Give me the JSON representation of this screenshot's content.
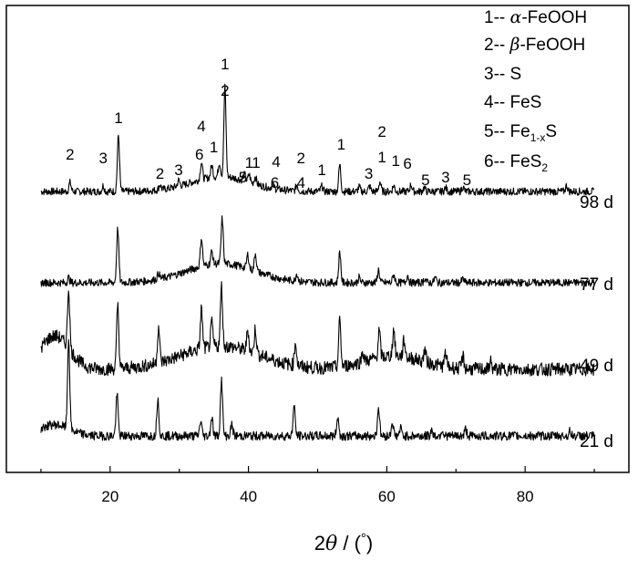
{
  "chart_data": {
    "type": "line",
    "xlabel_parts": [
      "2",
      "θ",
      " / (",
      "°",
      ")"
    ],
    "xlim": [
      5,
      95
    ],
    "x_ticks": [
      20,
      40,
      60,
      80
    ],
    "y_ticks_shown": false,
    "legend_position": "top-right",
    "legend": [
      {
        "num": "1--",
        "symbol": "α",
        "name": "-FeOOH"
      },
      {
        "num": "2--",
        "symbol": "β",
        "name": "-FeOOH"
      },
      {
        "num": "3--",
        "name": "S"
      },
      {
        "num": "4--",
        "name": "FeS"
      },
      {
        "num": "5--",
        "name": "Fe",
        "sub": "1-x",
        "tail": "S"
      },
      {
        "num": "6--",
        "name": "FeS",
        "sub": "2"
      }
    ],
    "series": [
      {
        "name": "98 d",
        "baseline": 0,
        "noise": 0.5,
        "range": [
          10,
          90
        ],
        "peaks": [
          [
            14.2,
            1.2
          ],
          [
            19.0,
            0.8
          ],
          [
            21.2,
            7.5
          ],
          [
            27.2,
            0.7
          ],
          [
            29.9,
            0.8
          ],
          [
            33.2,
            2.3
          ],
          [
            34.7,
            1.6
          ],
          [
            35.8,
            1.9
          ],
          [
            36.6,
            12.0
          ],
          [
            39.4,
            0.8
          ],
          [
            40.1,
            1.0
          ],
          [
            41.0,
            1.0
          ],
          [
            43.5,
            0.6
          ],
          [
            47.0,
            0.8
          ],
          [
            50.6,
            0.7
          ],
          [
            53.2,
            3.6
          ],
          [
            56.0,
            0.6
          ],
          [
            57.5,
            0.7
          ],
          [
            59.0,
            1.3
          ],
          [
            61.0,
            0.8
          ],
          [
            63.5,
            0.9
          ],
          [
            65.4,
            0.5
          ],
          [
            68.5,
            0.5
          ],
          [
            71.0,
            0.6
          ],
          [
            86.0,
            0.8
          ]
        ],
        "hump": [
          [
            36,
            2.0,
            6
          ]
        ]
      },
      {
        "name": "77 d",
        "baseline": 0,
        "noise": 0.6,
        "range": [
          10,
          90
        ],
        "peaks": [
          [
            14.0,
            0.8
          ],
          [
            21.1,
            8.5
          ],
          [
            27.0,
            0.9
          ],
          [
            33.2,
            4.5
          ],
          [
            34.7,
            2.0
          ],
          [
            36.2,
            7.0
          ],
          [
            39.9,
            2.2
          ],
          [
            41.0,
            2.8
          ],
          [
            47.0,
            1.2
          ],
          [
            53.2,
            4.8
          ],
          [
            56.0,
            0.8
          ],
          [
            58.8,
            2.0
          ],
          [
            61.0,
            1.3
          ],
          [
            63.0,
            1.2
          ],
          [
            65.5,
            0.7
          ],
          [
            67.0,
            0.8
          ],
          [
            71.0,
            0.6
          ]
        ],
        "hump": [
          [
            36,
            3.0,
            7
          ]
        ]
      },
      {
        "name": "49 d",
        "baseline": 0,
        "noise": 1.0,
        "range": [
          10,
          90
        ],
        "peaks": [
          [
            14.0,
            9.0
          ],
          [
            21.1,
            9.5
          ],
          [
            27.0,
            5.5
          ],
          [
            33.2,
            6.0
          ],
          [
            34.7,
            3.5
          ],
          [
            36.1,
            9.0
          ],
          [
            39.9,
            3.2
          ],
          [
            41.0,
            3.8
          ],
          [
            46.8,
            3.5
          ],
          [
            53.2,
            7.0
          ],
          [
            56.5,
            1.5
          ],
          [
            58.9,
            4.0
          ],
          [
            61.0,
            4.0
          ],
          [
            62.5,
            2.5
          ],
          [
            65.5,
            1.8
          ],
          [
            68.5,
            2.0
          ],
          [
            71.0,
            1.8
          ],
          [
            75.0,
            1.2
          ]
        ],
        "hump": [
          [
            12,
            5.0,
            3
          ],
          [
            36,
            3.5,
            8
          ],
          [
            61,
            2.0,
            6
          ]
        ]
      },
      {
        "name": "21 d",
        "baseline": 0,
        "noise": 0.6,
        "range": [
          10,
          90
        ],
        "peaks": [
          [
            14.0,
            12.0
          ],
          [
            21.0,
            5.5
          ],
          [
            26.9,
            5.0
          ],
          [
            33.1,
            2.0
          ],
          [
            34.7,
            2.5
          ],
          [
            36.1,
            7.5
          ],
          [
            37.6,
            1.5
          ],
          [
            46.6,
            4.0
          ],
          [
            52.9,
            2.5
          ],
          [
            58.8,
            3.8
          ],
          [
            60.8,
            1.8
          ],
          [
            62.0,
            1.0
          ],
          [
            66.5,
            0.8
          ],
          [
            68.0,
            0.8
          ],
          [
            71.4,
            0.9
          ],
          [
            86.5,
            0.6
          ]
        ],
        "hump": [
          [
            12,
            1.5,
            3
          ]
        ]
      }
    ],
    "annotations": [
      {
        "text": "2",
        "x": 14.2
      },
      {
        "text": "3",
        "x": 19.0
      },
      {
        "text": "1",
        "x": 21.2
      },
      {
        "text": "2",
        "x": 27.2
      },
      {
        "text": "3",
        "x": 29.9
      },
      {
        "text": "4",
        "x": 33.2
      },
      {
        "text": "6",
        "x": 32.9
      },
      {
        "text": "1",
        "x": 35.0
      },
      {
        "text": "1",
        "x": 36.6
      },
      {
        "text": "2",
        "x": 36.6
      },
      {
        "text": "5",
        "x": 39.2
      },
      {
        "text": "1",
        "x": 40.1
      },
      {
        "text": "1",
        "x": 41.1
      },
      {
        "text": "4",
        "x": 44.0
      },
      {
        "text": "6",
        "x": 43.8
      },
      {
        "text": "2",
        "x": 47.6
      },
      {
        "text": "4",
        "x": 47.6
      },
      {
        "text": "1",
        "x": 50.6
      },
      {
        "text": "1",
        "x": 53.4
      },
      {
        "text": "3",
        "x": 57.4
      },
      {
        "text": "2",
        "x": 59.3
      },
      {
        "text": "1",
        "x": 59.3
      },
      {
        "text": "1",
        "x": 61.3
      },
      {
        "text": "6",
        "x": 63.0
      },
      {
        "text": "5",
        "x": 65.6
      },
      {
        "text": "3",
        "x": 68.5
      },
      {
        "text": "5",
        "x": 71.6
      }
    ]
  }
}
